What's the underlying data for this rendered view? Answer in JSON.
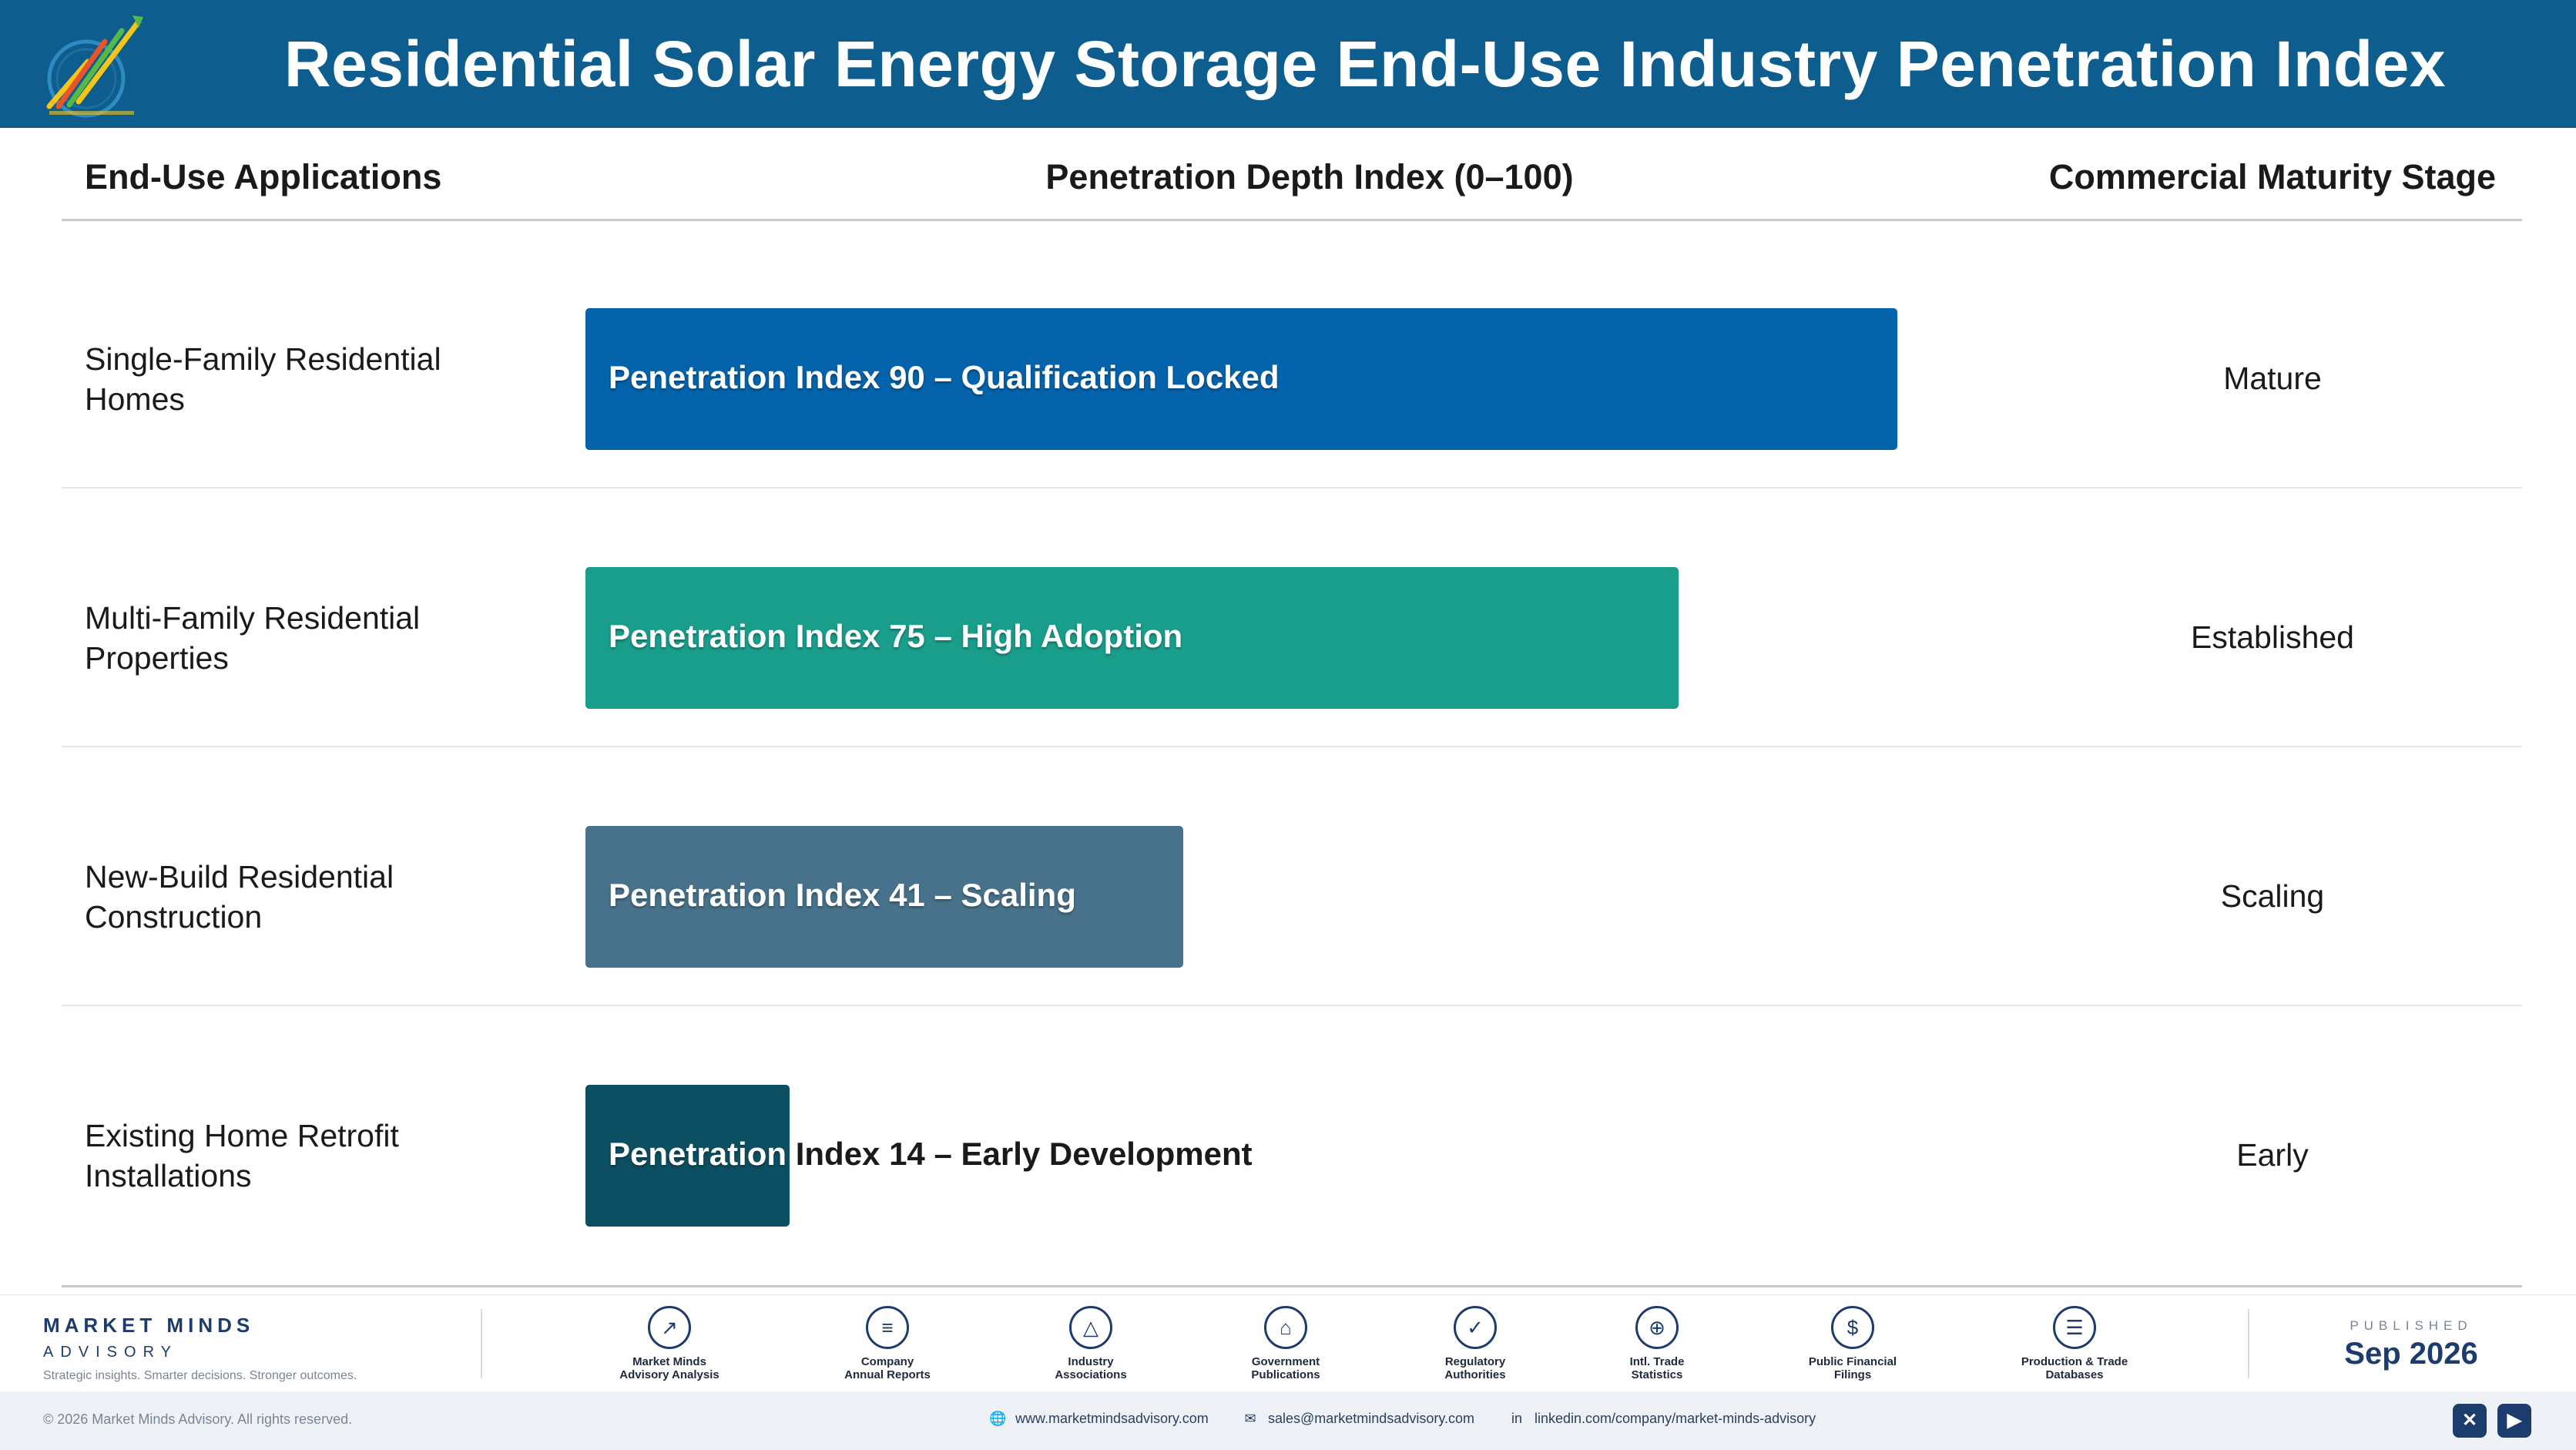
{
  "header": {
    "title": "Residential Solar Energy Storage End-Use Industry Penetration Index"
  },
  "columns": {
    "applications": "End-Use Applications",
    "depth": "Penetration Depth Index (0–100)",
    "stage": "Commercial Maturity Stage"
  },
  "chart_data": {
    "type": "bar",
    "orientation": "horizontal",
    "title": "Residential Solar Energy Storage End-Use Industry Penetration Index",
    "xlabel": "Penetration Depth Index (0–100)",
    "xlim": [
      0,
      100
    ],
    "categories": [
      "Single-Family Residential Homes",
      "Multi-Family Residential Properties",
      "New-Build Residential Construction",
      "Existing Home Retrofit Installations"
    ],
    "values": [
      90,
      75,
      41,
      14
    ],
    "bar_labels": [
      "Penetration Index 90 – Qualification Locked",
      "Penetration Index 75 – High Adoption",
      "Penetration Index 41 – Scaling",
      "Penetration Index 14 – Early Development"
    ],
    "stages": [
      "Mature",
      "Established",
      "Scaling",
      "Early"
    ],
    "colors": [
      "#0563ab",
      "#1a9e8c",
      "#48728b",
      "#0d4f62"
    ]
  },
  "footer": {
    "brand_name": "MARKET MINDS",
    "brand_sub": "ADVISORY",
    "brand_tag": "Strategic insights. Smarter decisions. Stronger outcomes.",
    "sources": [
      {
        "line1": "Market Minds",
        "line2": "Advisory Analysis",
        "icon": "trend-icon"
      },
      {
        "line1": "Company",
        "line2": "Annual Reports",
        "icon": "document-icon"
      },
      {
        "line1": "Industry",
        "line2": "Associations",
        "icon": "network-icon"
      },
      {
        "line1": "Government",
        "line2": "Publications",
        "icon": "building-icon"
      },
      {
        "line1": "Regulatory",
        "line2": "Authorities",
        "icon": "shield-icon"
      },
      {
        "line1": "Intl. Trade",
        "line2": "Statistics",
        "icon": "globe-icon"
      },
      {
        "line1": "Public Financial",
        "line2": "Filings",
        "icon": "currency-icon"
      },
      {
        "line1": "Production & Trade",
        "line2": "Databases",
        "icon": "database-icon"
      }
    ],
    "published_label": "PUBLISHED",
    "published_date": "Sep 2026",
    "copyright": "© 2026 Market Minds Advisory. All rights reserved.",
    "website": "www.marketmindsadvisory.com",
    "email": "sales@marketmindsadvisory.com",
    "linkedin": "linkedin.com/company/market-minds-advisory"
  }
}
